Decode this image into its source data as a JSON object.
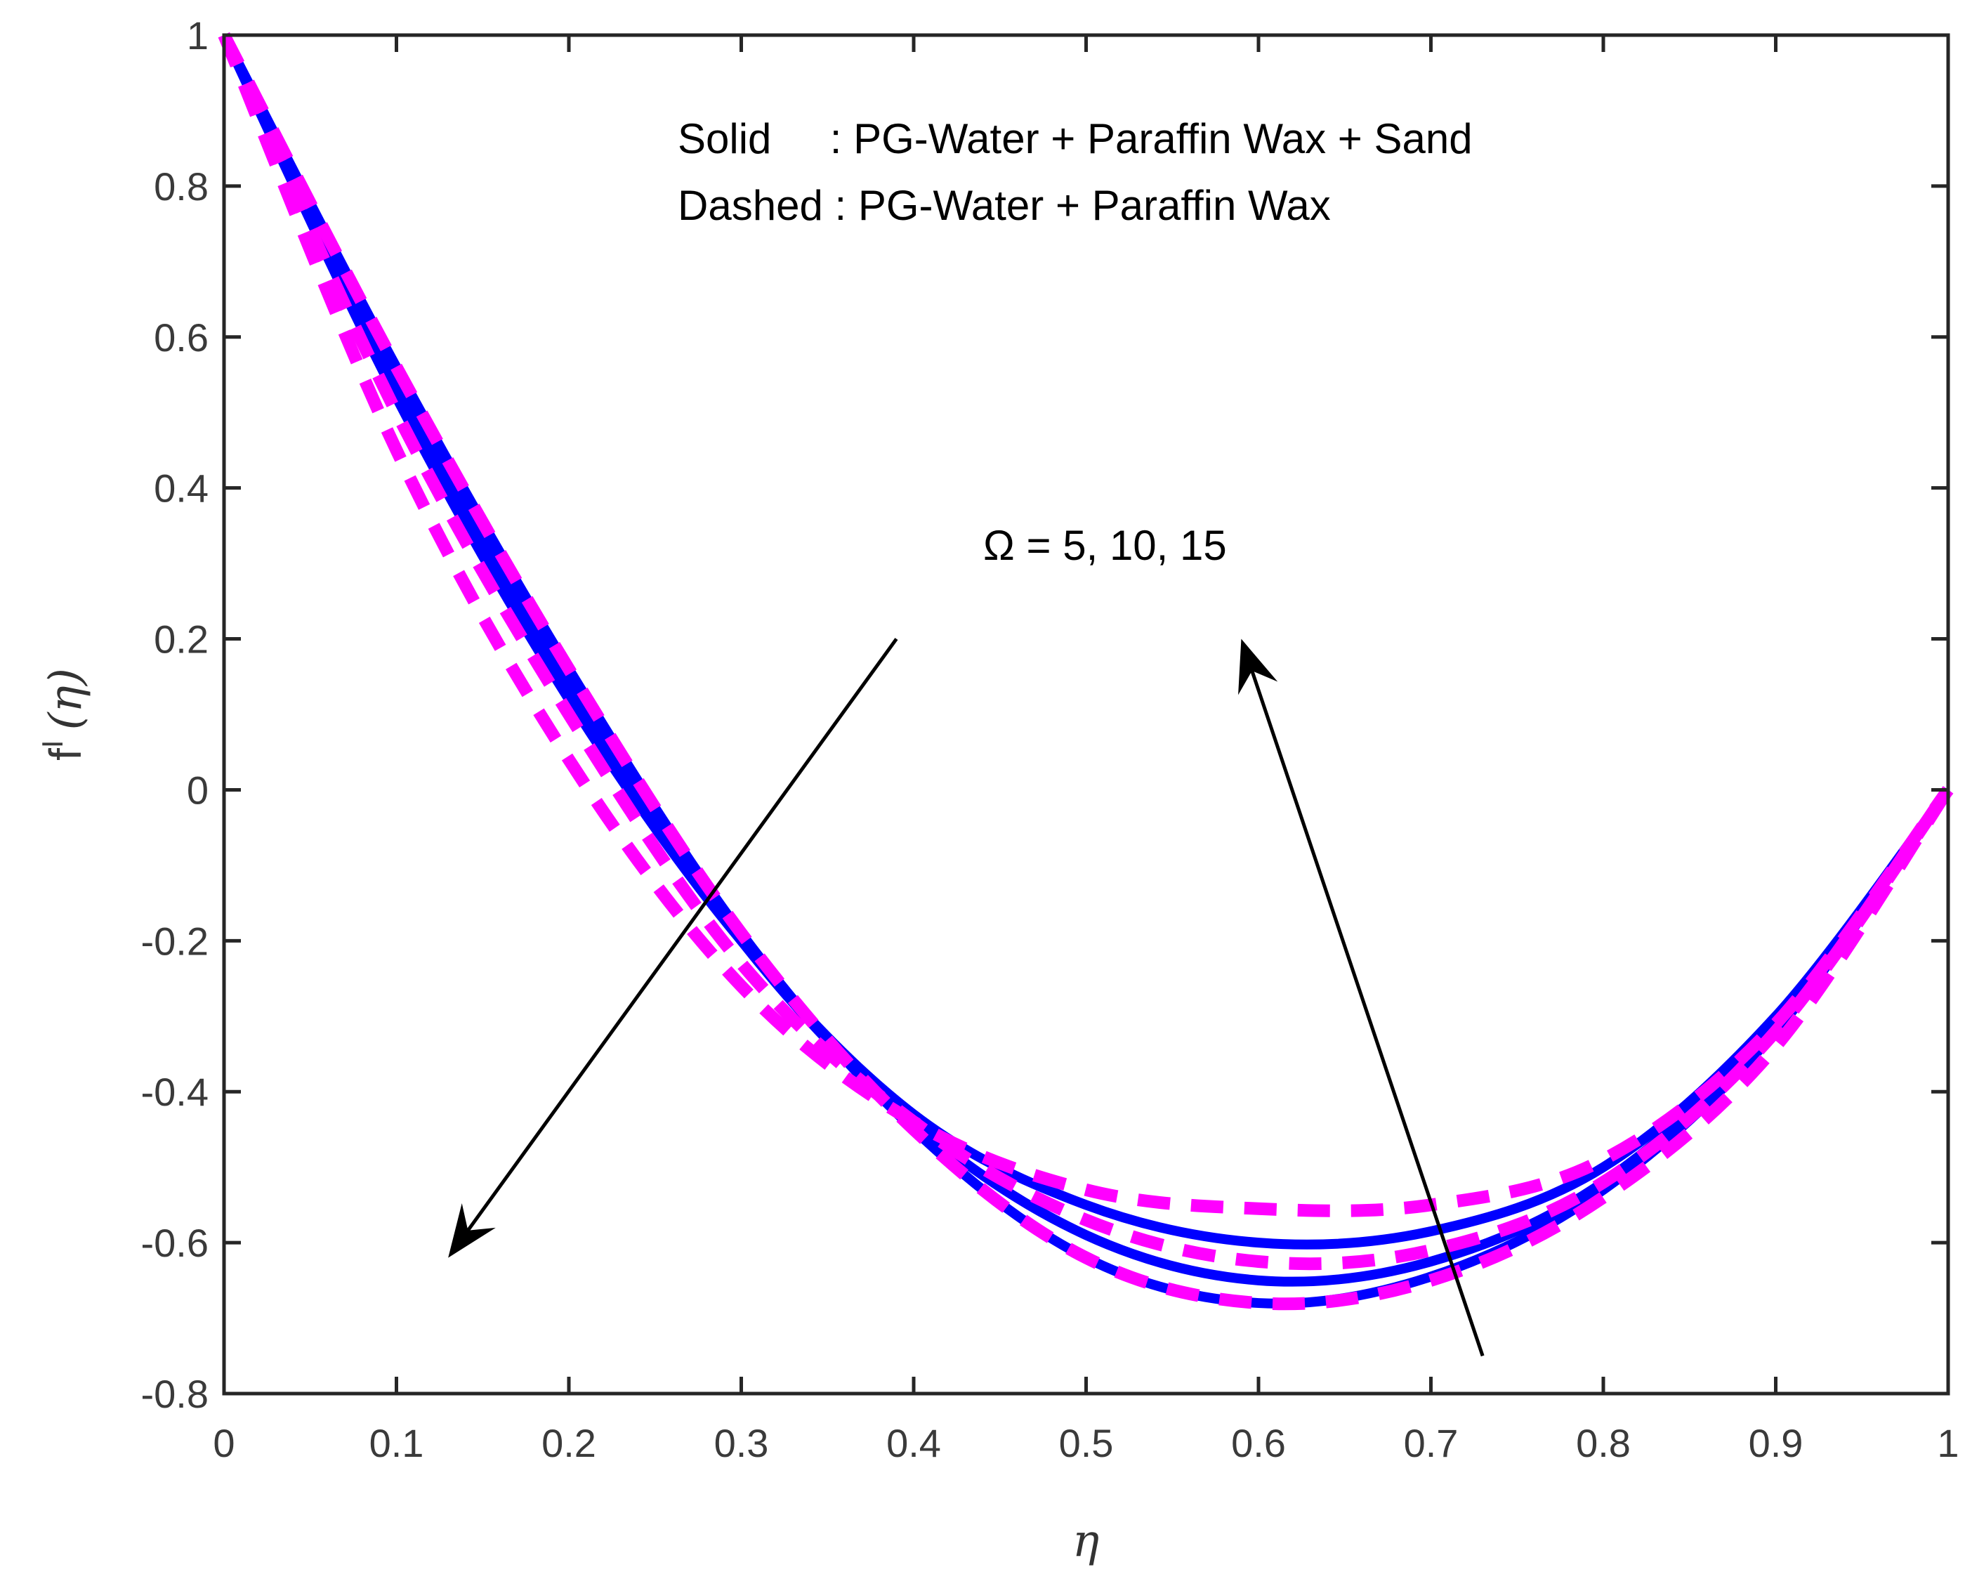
{
  "chart_data": {
    "type": "line",
    "xlabel": "η",
    "ylabel": "f",
    "ylabel_superscript": "I",
    "ylabel_arg": "(η)",
    "xlim": [
      0,
      1
    ],
    "ylim": [
      -0.8,
      1
    ],
    "grid": false,
    "xticks": [
      "0",
      "0.1",
      "0.2",
      "0.3",
      "0.4",
      "0.5",
      "0.6",
      "0.7",
      "0.8",
      "0.9",
      "1"
    ],
    "yticks": [
      "-0.8",
      "-0.6",
      "-0.4",
      "-0.2",
      "0",
      "0.2",
      "0.4",
      "0.6",
      "0.8",
      "1"
    ],
    "annotations": {
      "legend_solid": "Solid     : PG-Water + Paraffin Wax + Sand",
      "legend_dashed": "Dashed : PG-Water + Paraffin Wax",
      "omega": "Ω = 5, 10, 15"
    },
    "arrows": [
      {
        "from": [
          0.39,
          0.2
        ],
        "to": [
          0.13,
          -0.62
        ]
      },
      {
        "from": [
          0.73,
          -0.75
        ],
        "to": [
          0.59,
          0.2
        ]
      }
    ],
    "colors": {
      "solid": "#0000ff",
      "dashed": "#ff00ff",
      "arrow": "#000000",
      "axis": "#262626"
    },
    "x": [
      0,
      0.1,
      0.2,
      0.3,
      0.4,
      0.5,
      0.6,
      0.7,
      0.8,
      0.9,
      1
    ],
    "series": [
      {
        "style": "solid",
        "values": [
          1,
          0.52,
          0.12,
          -0.2,
          -0.43,
          -0.55,
          -0.6,
          -0.585,
          -0.5,
          -0.3,
          0
        ]
      },
      {
        "style": "solid",
        "values": [
          1,
          0.54,
          0.14,
          -0.2,
          -0.44,
          -0.59,
          -0.65,
          -0.625,
          -0.52,
          -0.31,
          0
        ]
      },
      {
        "style": "solid",
        "values": [
          1,
          0.56,
          0.16,
          -0.19,
          -0.45,
          -0.62,
          -0.68,
          -0.645,
          -0.53,
          -0.32,
          0
        ]
      },
      {
        "style": "dashed",
        "values": [
          1,
          0.45,
          0.04,
          -0.26,
          -0.44,
          -0.53,
          -0.555,
          -0.55,
          -0.49,
          -0.31,
          0
        ]
      },
      {
        "style": "dashed",
        "values": [
          1,
          0.5,
          0.1,
          -0.23,
          -0.44,
          -0.57,
          -0.625,
          -0.61,
          -0.52,
          -0.32,
          0
        ]
      },
      {
        "style": "dashed",
        "values": [
          1,
          0.56,
          0.16,
          -0.19,
          -0.45,
          -0.62,
          -0.68,
          -0.65,
          -0.54,
          -0.34,
          0
        ]
      }
    ]
  }
}
